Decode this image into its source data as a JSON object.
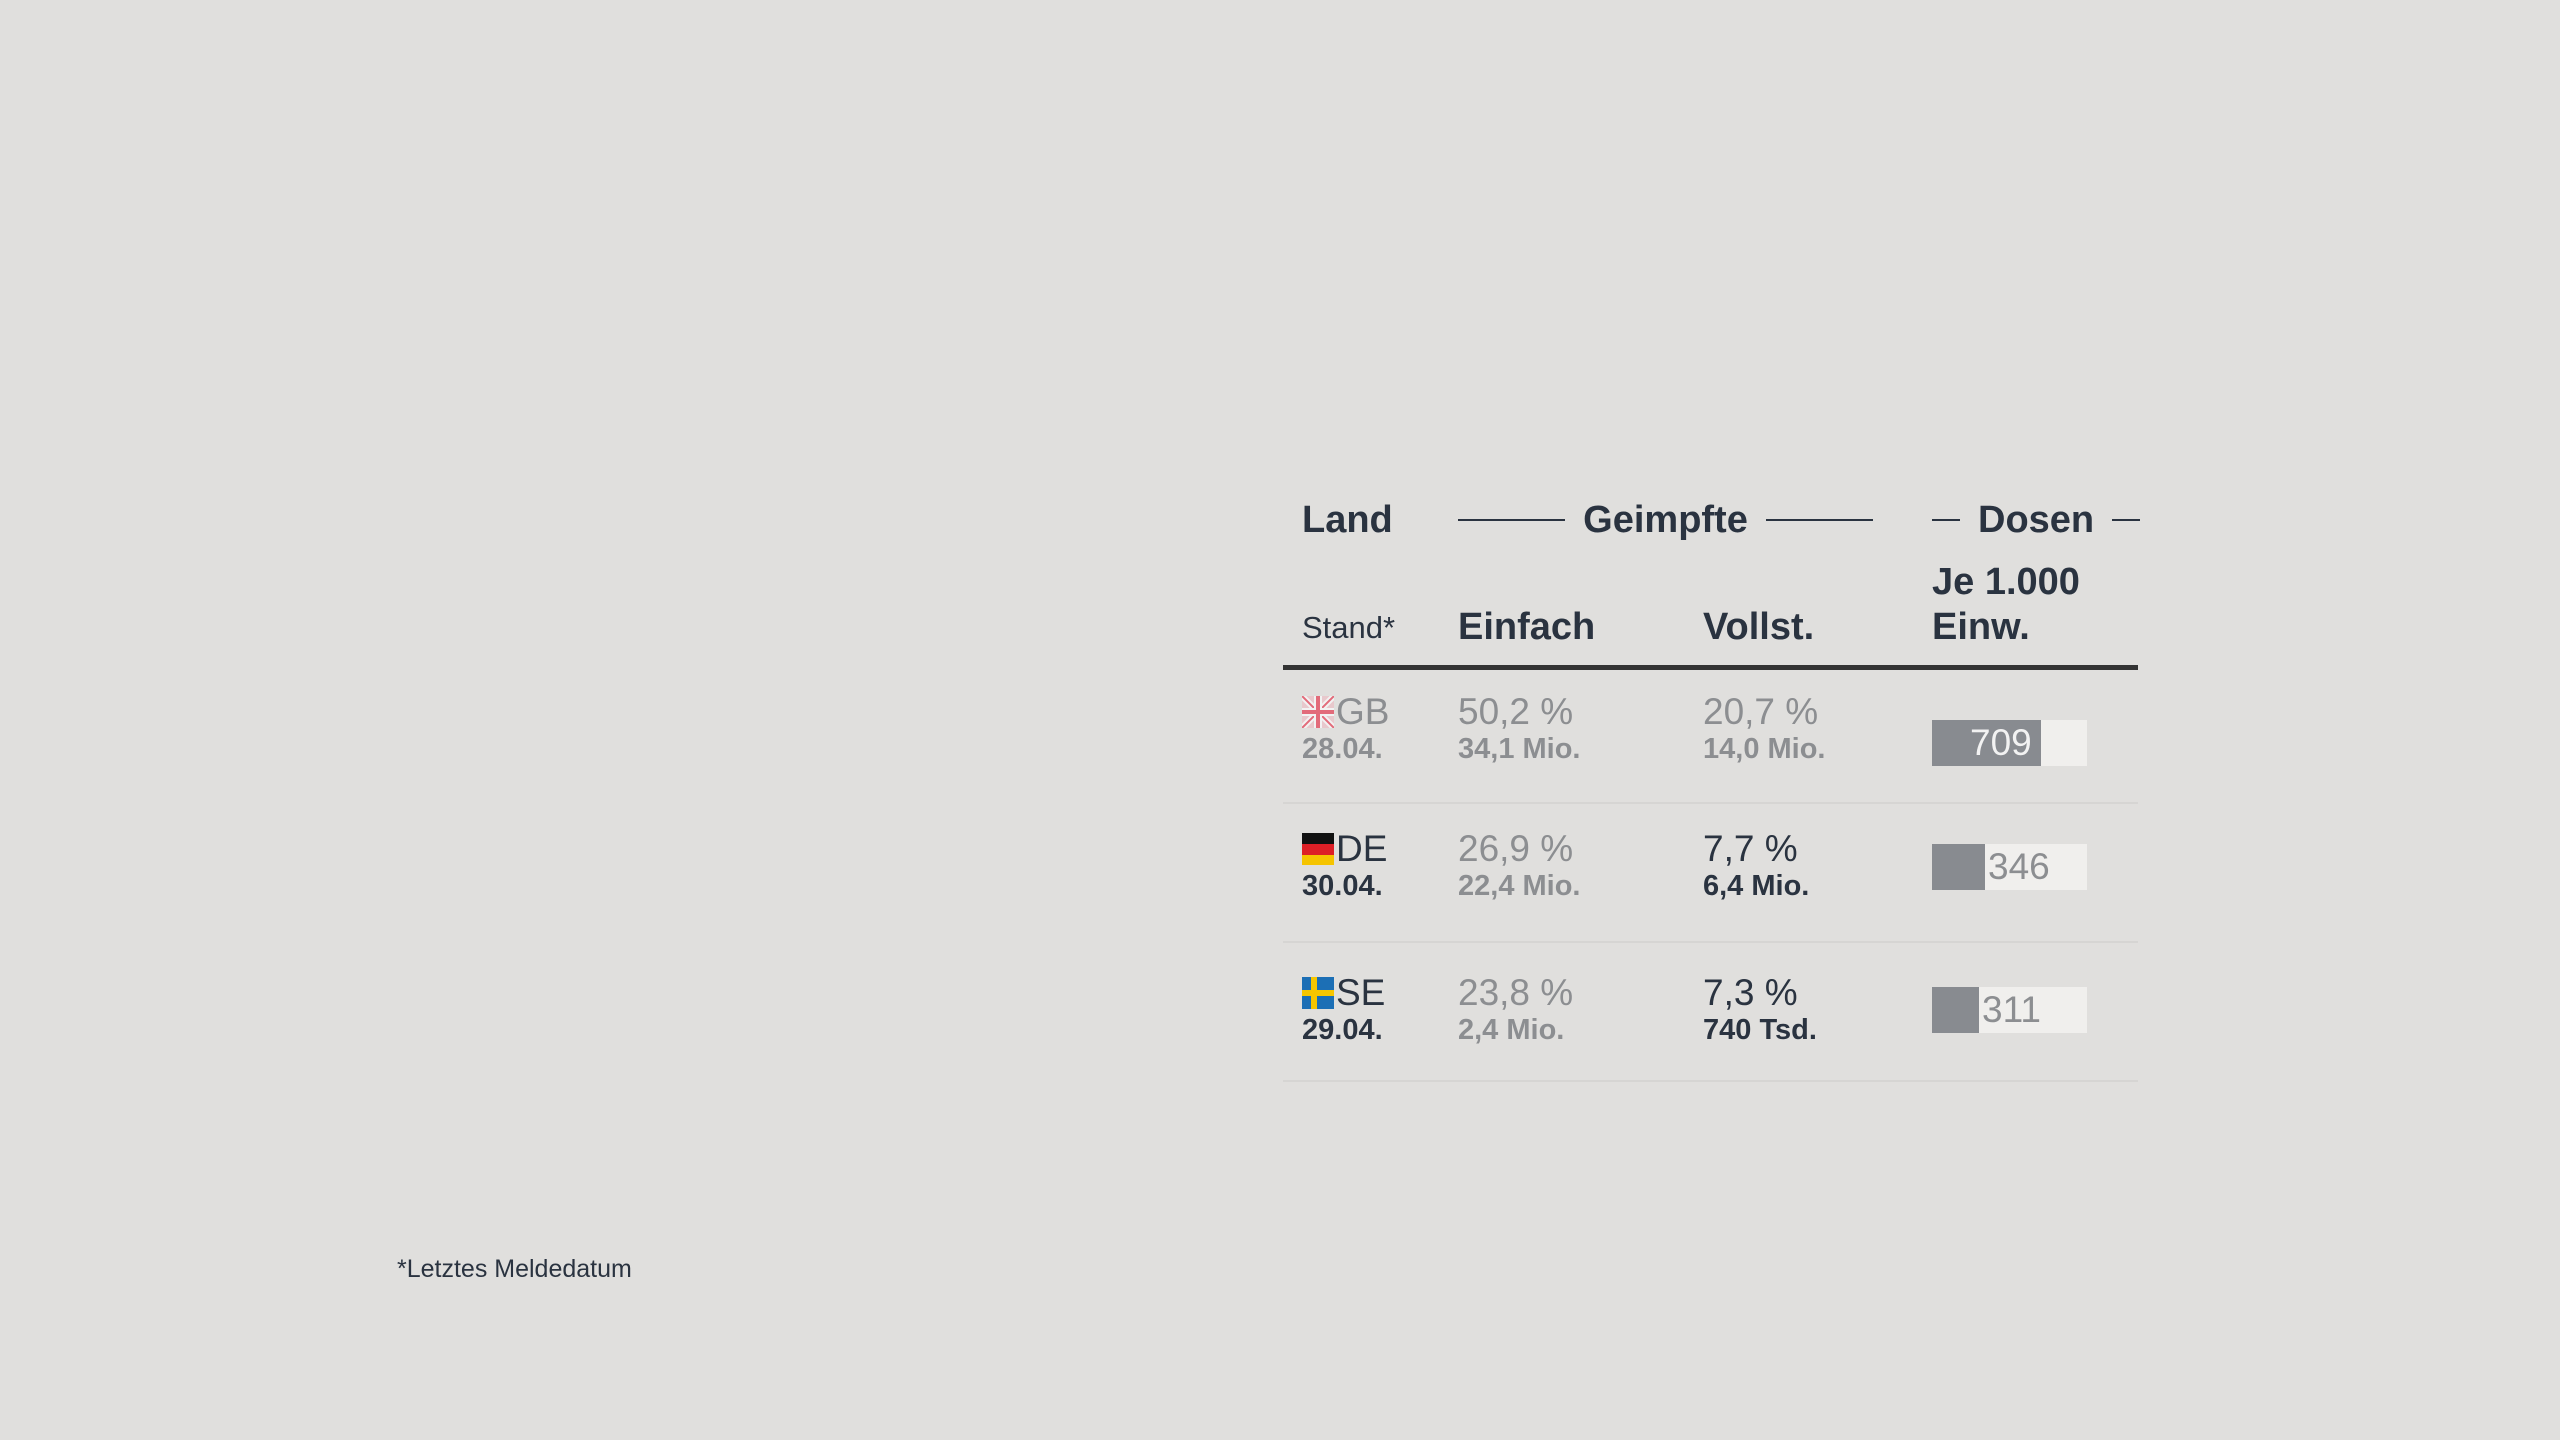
{
  "table": {
    "header": {
      "land": "Land",
      "geimpfte": "Geimpfte",
      "dosen": "Dosen",
      "stand": "Stand*",
      "einfach": "Einfach",
      "vollst": "Vollst.",
      "je_line1": "Je 1.000",
      "je_line2": "Einw."
    },
    "rows": [
      {
        "country": "GB",
        "flag": "gb-flag-icon",
        "date": "28.04.",
        "einfach_pct": "50,2 %",
        "einfach_abs": "34,1 Mio.",
        "vollst_pct": "20,7 %",
        "vollst_abs": "14,0 Mio.",
        "dosen": "709",
        "dosen_fraction": 0.7
      },
      {
        "country": "DE",
        "flag": "de-flag-icon",
        "date": "30.04.",
        "einfach_pct": "26,9 %",
        "einfach_abs": "22,4 Mio.",
        "vollst_pct": "7,7 %",
        "vollst_abs": "6,4 Mio.",
        "dosen": "346",
        "dosen_fraction": 0.34
      },
      {
        "country": "SE",
        "flag": "se-flag-icon",
        "date": "29.04.",
        "einfach_pct": "23,8 %",
        "einfach_abs": "2,4 Mio.",
        "vollst_pct": "7,3 %",
        "vollst_abs": "740 Tsd.",
        "dosen": "311",
        "dosen_fraction": 0.3
      }
    ]
  },
  "footnote": "*Letztes Meldedatum",
  "colors": {
    "background": "#e0dfdd",
    "text": "#2a3340",
    "muted": "#8c8e91",
    "bar_fill": "#888b90",
    "bar_track": "#f0efed"
  }
}
